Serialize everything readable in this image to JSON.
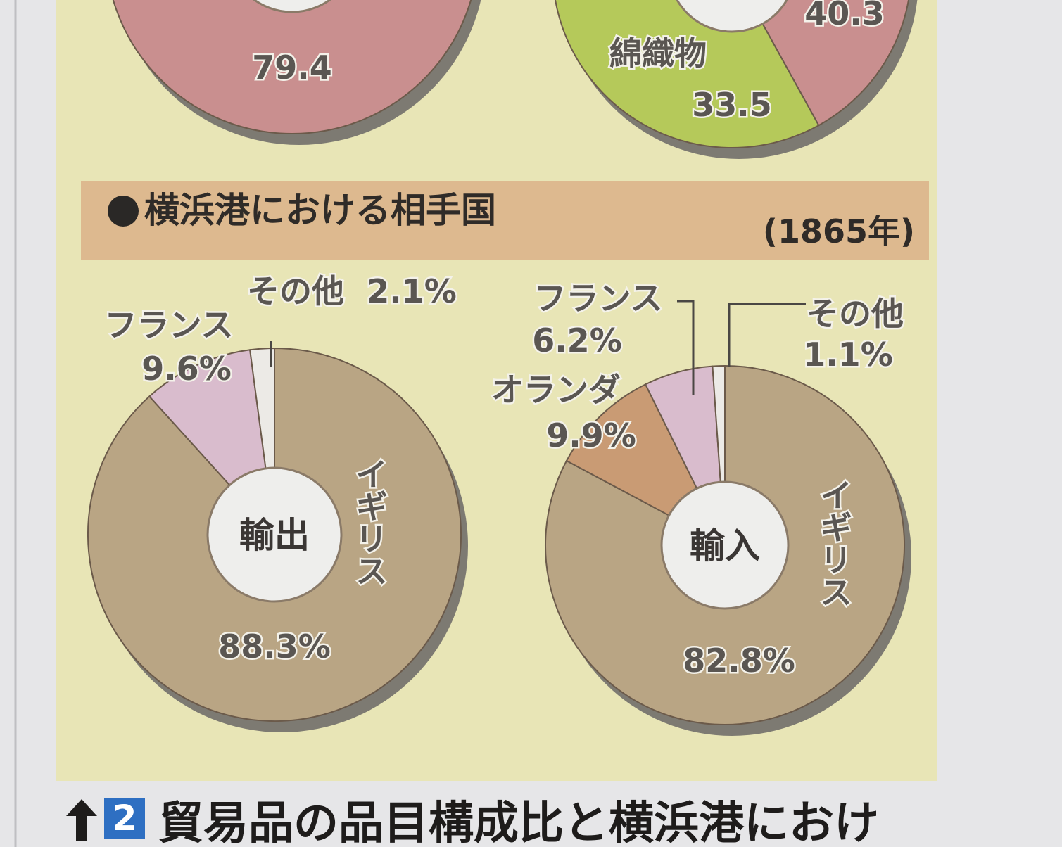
{
  "chart_data": [
    {
      "type": "donut",
      "categories": [
        null
      ],
      "values": [
        79.4
      ],
      "colors": [
        "#c98f8f"
      ]
    },
    {
      "type": "donut",
      "categories": [
        null,
        "綿織物"
      ],
      "values": [
        40.3,
        33.5
      ],
      "colors": [
        "#c98f8f",
        "#b5c95a"
      ]
    },
    {
      "type": "donut",
      "center_label": "輸出",
      "categories": [
        "イギリス",
        "フランス",
        "その他"
      ],
      "values": [
        88.3,
        9.6,
        2.1
      ],
      "value_labels": [
        "88.3%",
        "9.6%",
        "2.1%"
      ],
      "colors": [
        "#b9a584",
        "#d9bccd",
        "#eceae6"
      ]
    },
    {
      "type": "donut",
      "center_label": "輸入",
      "categories": [
        "イギリス",
        "オランダ",
        "フランス",
        "その他"
      ],
      "values": [
        82.8,
        9.9,
        6.2,
        1.1
      ],
      "value_labels": [
        "82.8%",
        "9.9%",
        "6.2%",
        "1.1%"
      ],
      "colors": [
        "#b9a584",
        "#c99b74",
        "#d9bccd",
        "#eceae6"
      ]
    }
  ],
  "section": {
    "title": "横浜港における相手国",
    "year": "(1865年)"
  },
  "caption": {
    "number": "2",
    "text": "貿易品の品目構成比と横浜港におけ"
  }
}
